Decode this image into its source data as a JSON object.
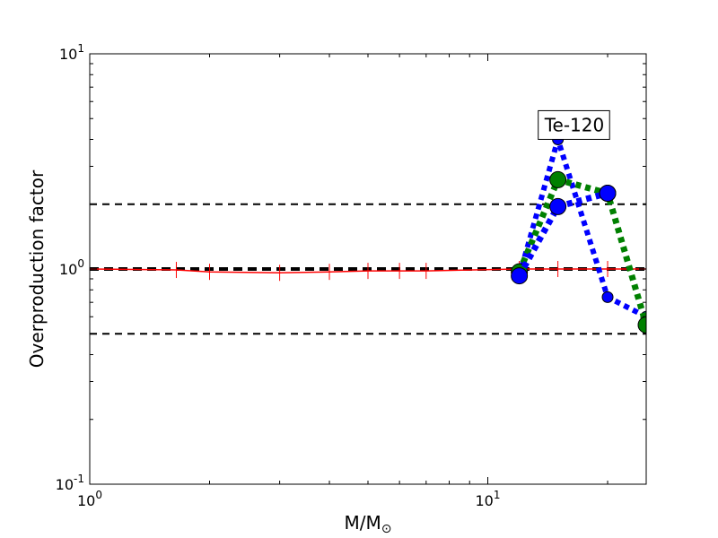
{
  "chart_data": {
    "type": "line",
    "title": "",
    "xlabel": "M/M",
    "xlabel_sub": "⊙",
    "ylabel": "Overproduction factor",
    "xscale": "log",
    "yscale": "log",
    "xlim": [
      1,
      25
    ],
    "ylim": [
      0.1,
      10
    ],
    "x_ticks": [
      {
        "value": 1,
        "base": "10",
        "exp": "0"
      },
      {
        "value": 10,
        "base": "10",
        "exp": "1"
      }
    ],
    "y_ticks": [
      {
        "value": 0.1,
        "base": "10",
        "exp": "-1"
      },
      {
        "value": 1,
        "base": "10",
        "exp": "0"
      },
      {
        "value": 10,
        "base": "10",
        "exp": "1"
      }
    ],
    "reference_lines": [
      {
        "y": 2.0,
        "style": "dashed",
        "color": "#000000"
      },
      {
        "y": 1.0,
        "style": "dashed",
        "color": "#000000"
      },
      {
        "y": 0.5,
        "style": "dashed",
        "color": "#000000"
      }
    ],
    "annotation": {
      "text": "Te-120",
      "x": 16.5,
      "y": 4.6
    },
    "series": [
      {
        "style": "solid",
        "color": "#ff0000",
        "x": [
          1,
          1.65,
          2,
          3,
          4,
          5,
          6,
          7,
          12,
          15,
          20,
          25
        ],
        "y": [
          1.0,
          0.99,
          0.97,
          0.96,
          0.97,
          0.98,
          0.98,
          0.98,
          1.0,
          1.0,
          1.0,
          1.0
        ],
        "error_ticks": true
      },
      {
        "style": "dotted",
        "color": "#0000ff",
        "x": [
          12,
          15,
          20,
          25
        ],
        "y": [
          0.93,
          4.0,
          0.74,
          0.6
        ],
        "marker_size": "small"
      },
      {
        "style": "dotted",
        "color": "#008000",
        "x": [
          12,
          15,
          20,
          25
        ],
        "y": [
          0.97,
          2.6,
          2.25,
          0.55
        ],
        "marker_size": "large"
      },
      {
        "style": "dotted",
        "color": "#0000ff",
        "x": [
          12,
          15,
          20
        ],
        "y": [
          0.93,
          1.95,
          2.25
        ],
        "marker_size": "large"
      }
    ]
  }
}
